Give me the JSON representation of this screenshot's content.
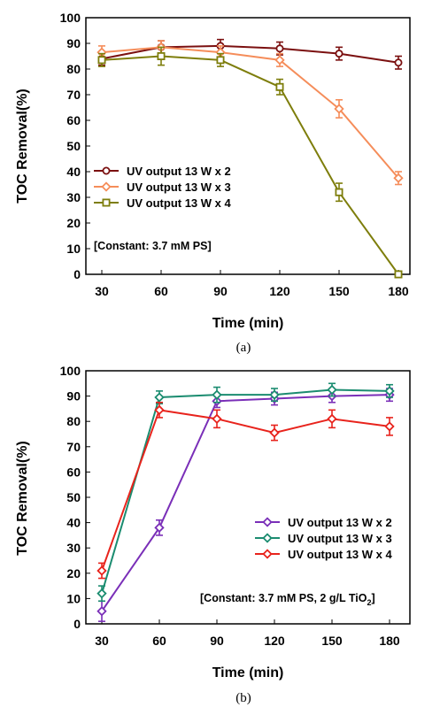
{
  "chart_data": [
    {
      "type": "line",
      "xlabel": "Time (min)",
      "ylabel": "TOC Removal(%)",
      "x": [
        30,
        60,
        90,
        120,
        150,
        180
      ],
      "ylim": [
        0,
        100
      ],
      "yticks": [
        0,
        10,
        20,
        30,
        40,
        50,
        60,
        70,
        80,
        90,
        100
      ],
      "grid": false,
      "legend_position": "middle-left",
      "annotation": "[Constant: 3.7 mM PS]",
      "caption": "(a)",
      "marker": "circle",
      "series": [
        {
          "name": "UV output 13 W x 2",
          "color": "#7b1010",
          "marker": "circle",
          "values": [
            84,
            88.5,
            89,
            88,
            86,
            82.5
          ],
          "errors": [
            2.5,
            2.5,
            2.5,
            2.5,
            2.5,
            2.5
          ]
        },
        {
          "name": "UV output 13 W x 3",
          "color": "#f58d5a",
          "marker": "diamond",
          "values": [
            86.5,
            88.5,
            86.5,
            83.5,
            64.5,
            37.5
          ],
          "errors": [
            2.5,
            2.5,
            2.5,
            2.5,
            3.5,
            2.5
          ]
        },
        {
          "name": "UV output 13 W x 4",
          "color": "#7e7e0c",
          "marker": "square",
          "values": [
            83.5,
            85,
            83.5,
            73,
            32,
            0
          ],
          "errors": [
            2.5,
            3.5,
            2.5,
            3,
            3.5,
            1
          ]
        }
      ]
    },
    {
      "type": "line",
      "xlabel": "Time (min)",
      "ylabel": "TOC Removal(%)",
      "x": [
        30,
        60,
        90,
        120,
        150,
        180
      ],
      "ylim": [
        0,
        100
      ],
      "yticks": [
        0,
        10,
        20,
        30,
        40,
        50,
        60,
        70,
        80,
        90,
        100
      ],
      "grid": false,
      "legend_position": "bottom-right",
      "annotation": "[Constant: 3.7 mM PS, 2 g/L TiO",
      "annotation_sub": "2",
      "annotation_end": "]",
      "caption": "(b)",
      "series": [
        {
          "name": "UV output 13 W x 2",
          "color": "#7a2fb8",
          "marker": "diamond",
          "values": [
            5,
            38,
            88,
            89,
            90,
            90.5
          ],
          "errors": [
            4,
            3,
            2.5,
            2.5,
            2.5,
            2.5
          ]
        },
        {
          "name": "UV output 13 W x 3",
          "color": "#1b8c70",
          "marker": "diamond",
          "values": [
            12,
            89.5,
            90.5,
            90.5,
            92.5,
            92
          ],
          "errors": [
            3,
            2.5,
            3,
            2.5,
            2.5,
            2.5
          ]
        },
        {
          "name": "UV output 13 W x 4",
          "color": "#e8231c",
          "marker": "diamond",
          "values": [
            21,
            84.5,
            81,
            75.5,
            81,
            78
          ],
          "errors": [
            3,
            3,
            3.5,
            3,
            3.5,
            3.5
          ]
        }
      ]
    }
  ]
}
